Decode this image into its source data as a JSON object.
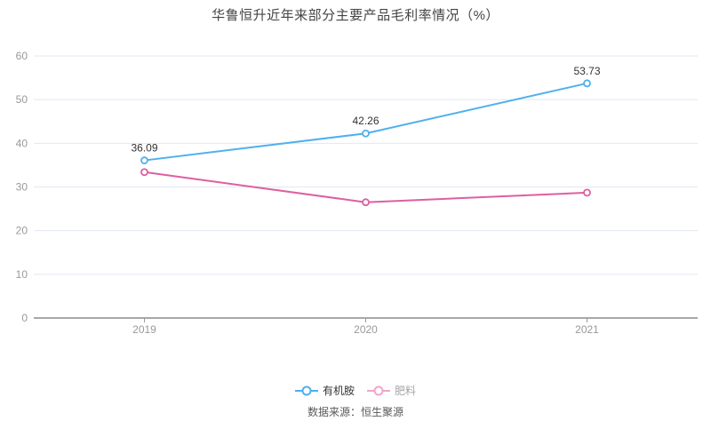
{
  "chart": {
    "title": "华鲁恒升近年来部分主要产品毛利率情况（%）",
    "source": "数据来源：恒生聚源"
  },
  "chart_data": {
    "type": "line",
    "title": "华鲁恒升近年来部分主要产品毛利率情况（%）",
    "categories": [
      "2019",
      "2020",
      "2021"
    ],
    "series": [
      {
        "name": "有机胺",
        "values": [
          36.09,
          42.26,
          53.73
        ],
        "labels": [
          "36.09",
          "42.26",
          "53.73"
        ],
        "show_labels": true,
        "color": "#4fb0ee",
        "legend_marker_color": "#4fb0ee",
        "legend_text_color": "#333333"
      },
      {
        "name": "肥料",
        "values": [
          33.4,
          26.5,
          28.7
        ],
        "labels": [],
        "show_labels": false,
        "color": "#dd5fa2",
        "legend_marker_color": "#f0a5cd",
        "legend_text_color": "#a6a6a6"
      }
    ],
    "xlabel": "",
    "ylabel": "",
    "ylim": [
      0,
      60
    ],
    "ytick_interval": 10,
    "yticks": [
      0,
      10,
      20,
      30,
      40,
      50,
      60
    ],
    "grid": true,
    "legend_position": "bottom",
    "marker": "hollow-circle",
    "style": {
      "grid_color": "#e2e7f0",
      "axis_line_color": "#515151",
      "tick_color": "#999999",
      "axis_label_color": "#999999",
      "data_label_color": "#333333",
      "background": "#ffffff"
    }
  }
}
